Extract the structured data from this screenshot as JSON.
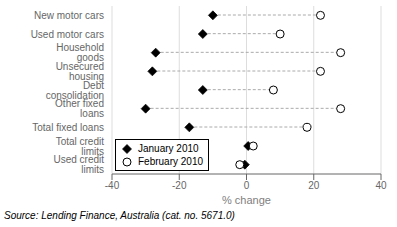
{
  "chart_data": {
    "type": "dumbbell",
    "categories": [
      "New motor cars",
      "Used motor cars",
      "Household goods",
      "Unsecured housing",
      "Debt consolidation",
      "Other fixed loans",
      "Total fixed loans",
      "Total credit limits",
      "Used credit limits"
    ],
    "series": [
      {
        "name": "January 2010",
        "color": "black",
        "marker": "diamond",
        "values": [
          -10,
          -13,
          -27,
          -28,
          -13,
          -30,
          -17,
          0.5,
          -0.5
        ]
      },
      {
        "name": "February 2010",
        "color": "white",
        "marker": "circle",
        "values": [
          22,
          10,
          28,
          22,
          8,
          28,
          18,
          2,
          -2
        ]
      }
    ],
    "color": "#aaaaaa",
    "xlabel": "% change",
    "xlim": [
      -40,
      40
    ],
    "xticks": [
      -40,
      -20,
      0,
      20,
      40
    ],
    "grid": true,
    "legend": "lower left",
    "annotations": [
      "Source: Lending Finance, Australia (cat. no. 5671.0)"
    ]
  }
}
